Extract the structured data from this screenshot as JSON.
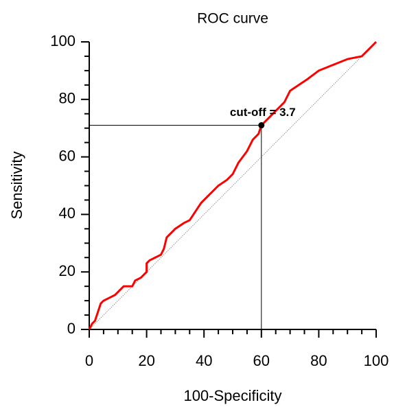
{
  "chart_data": {
    "type": "line",
    "title": "ROC curve",
    "xlabel": "100-Specificity",
    "ylabel": "Sensitivity",
    "x": [
      0,
      1,
      2,
      3,
      4,
      5,
      7,
      9,
      11,
      12,
      15,
      16,
      18,
      20,
      20,
      21,
      23,
      25,
      26,
      27,
      30,
      33,
      35,
      37,
      39,
      42,
      45,
      48,
      50,
      52,
      55,
      57,
      59,
      60,
      62,
      65,
      68,
      70,
      73,
      76,
      80,
      85,
      90,
      95,
      98,
      100
    ],
    "values": [
      0,
      2,
      3,
      6,
      9,
      10,
      11,
      12,
      14,
      15,
      15,
      17,
      18,
      20,
      23,
      24,
      25,
      26,
      28,
      32,
      35,
      37,
      38,
      41,
      44,
      47,
      50,
      52,
      54,
      58,
      62,
      66,
      68,
      71,
      73,
      76,
      79,
      83,
      85,
      87,
      90,
      92,
      94,
      95,
      98,
      100
    ],
    "color": "#ff0000",
    "diagonal": true,
    "annotation": {
      "text": "cut-off = 3.7",
      "x": 60,
      "y": 71
    },
    "xlim": [
      0,
      100
    ],
    "ylim": [
      0,
      100
    ],
    "xticks": [
      0,
      20,
      40,
      60,
      80,
      100
    ],
    "yticks": [
      0,
      20,
      40,
      60,
      80,
      100
    ]
  }
}
